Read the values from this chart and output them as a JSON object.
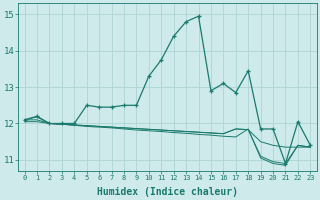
{
  "title": "",
  "xlabel": "Humidex (Indice chaleur)",
  "ylabel": "",
  "background_color": "#ceeaea",
  "grid_color": "#aed4d4",
  "line_color": "#1a7a6e",
  "xlim": [
    -0.5,
    23.5
  ],
  "ylim": [
    10.7,
    15.3
  ],
  "yticks": [
    11,
    12,
    13,
    14,
    15
  ],
  "xticks": [
    0,
    1,
    2,
    3,
    4,
    5,
    6,
    7,
    8,
    9,
    10,
    11,
    12,
    13,
    14,
    15,
    16,
    17,
    18,
    19,
    20,
    21,
    22,
    23
  ],
  "series1_x": [
    0,
    1,
    2,
    3,
    4,
    5,
    6,
    7,
    8,
    9,
    10,
    11,
    12,
    13,
    14,
    15,
    16,
    17,
    18,
    19,
    20,
    21,
    22,
    23
  ],
  "series1_y": [
    12.1,
    12.2,
    12.0,
    12.0,
    12.0,
    12.5,
    12.45,
    12.45,
    12.5,
    12.5,
    13.3,
    13.75,
    14.4,
    14.8,
    14.95,
    12.9,
    13.1,
    12.85,
    13.45,
    11.85,
    11.85,
    10.9,
    12.05,
    11.4
  ],
  "series2_x": [
    0,
    1,
    2,
    3,
    4,
    5,
    6,
    7,
    8,
    9,
    10,
    11,
    12,
    13,
    14,
    15,
    16,
    17,
    18,
    19,
    20,
    21,
    22,
    23
  ],
  "series2_y": [
    12.1,
    12.18,
    12.0,
    11.98,
    11.95,
    11.92,
    11.9,
    11.88,
    11.85,
    11.82,
    11.8,
    11.78,
    11.75,
    11.73,
    11.7,
    11.68,
    11.65,
    11.63,
    11.85,
    11.05,
    10.9,
    10.85,
    11.4,
    11.35
  ],
  "series3_x": [
    0,
    1,
    2,
    3,
    4,
    5,
    6,
    7,
    8,
    9,
    10,
    11,
    12,
    13,
    14,
    15,
    16,
    17,
    18,
    19,
    20,
    21,
    22,
    23
  ],
  "series3_y": [
    12.1,
    12.1,
    12.0,
    11.98,
    11.96,
    11.94,
    11.92,
    11.9,
    11.88,
    11.86,
    11.84,
    11.82,
    11.8,
    11.78,
    11.76,
    11.74,
    11.72,
    11.85,
    11.83,
    11.1,
    10.95,
    10.9,
    11.4,
    11.35
  ],
  "series4_x": [
    0,
    1,
    2,
    3,
    4,
    5,
    6,
    7,
    8,
    9,
    10,
    11,
    12,
    13,
    14,
    15,
    16,
    17,
    18,
    19,
    20,
    21,
    22,
    23
  ],
  "series4_y": [
    12.05,
    12.05,
    12.0,
    11.98,
    11.96,
    11.94,
    11.92,
    11.9,
    11.88,
    11.86,
    11.84,
    11.82,
    11.8,
    11.78,
    11.76,
    11.74,
    11.72,
    11.85,
    11.83,
    11.5,
    11.4,
    11.35,
    11.35,
    11.35
  ],
  "xlabel_fontsize": 7,
  "xtick_fontsize": 5,
  "ytick_fontsize": 6.5
}
